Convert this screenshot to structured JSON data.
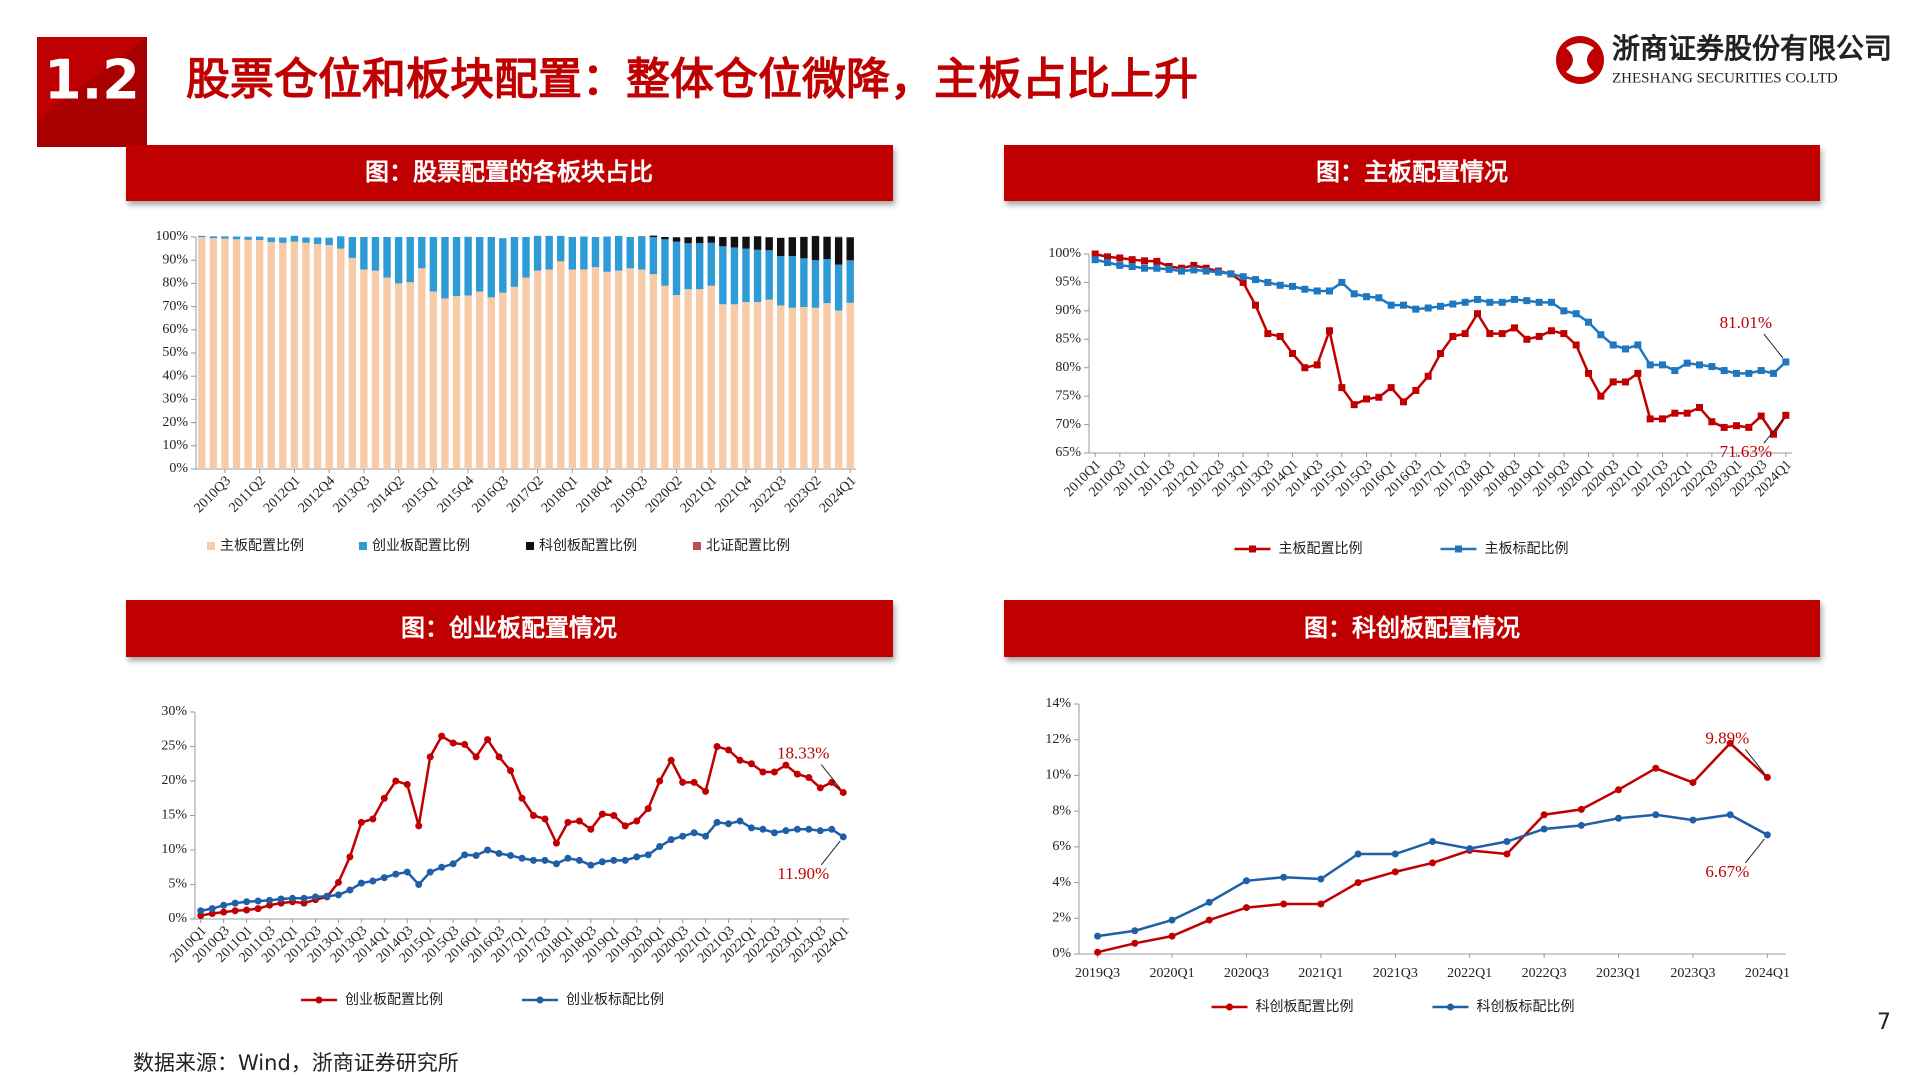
{
  "section_number": "1.2",
  "title": "股票仓位和板块配置：整体仓位微降，主板占比上升",
  "company": "浙商证券股份有限公司",
  "company_en": "ZHESHANG SECURITIES CO.LTD",
  "source": "数据来源：Wind，浙商证券研究所",
  "page_number": "7",
  "chart_data": [
    {
      "type": "bar",
      "stacked": true,
      "title": "图：股票配置的各板块占比",
      "legend": "bottom",
      "marker": "square",
      "categories": [
        null,
        null,
        "2010Q3",
        null,
        null,
        "2011Q2",
        null,
        null,
        "2012Q1",
        null,
        null,
        "2012Q4",
        null,
        null,
        "2013Q3",
        null,
        null,
        "2014Q2",
        null,
        null,
        "2015Q1",
        null,
        null,
        "2015Q4",
        null,
        null,
        "2016Q3",
        null,
        null,
        "2017Q2",
        null,
        null,
        "2018Q1",
        null,
        null,
        "2018Q4",
        null,
        null,
        "2019Q3",
        null,
        null,
        "2020Q2",
        null,
        null,
        "2021Q1",
        null,
        null,
        "2021Q4",
        null,
        null,
        "2022Q3",
        null,
        null,
        "2023Q2",
        null,
        null,
        "2024Q1"
      ],
      "ylim": [
        0,
        100
      ],
      "yticks": [
        {
          "value": 0,
          "label": "0%"
        },
        {
          "value": 10,
          "label": "10%"
        },
        {
          "value": 20,
          "label": "20%"
        },
        {
          "value": 30,
          "label": "30%"
        },
        {
          "value": 40,
          "label": "40%"
        },
        {
          "value": 50,
          "label": "50%"
        },
        {
          "value": 60,
          "label": "60%"
        },
        {
          "value": 70,
          "label": "70%"
        },
        {
          "value": 80,
          "label": "80%"
        },
        {
          "value": 90,
          "label": "90%"
        },
        {
          "value": 100,
          "label": "100%"
        }
      ],
      "series": [
        {
          "name": "主板配置比例",
          "color": "#f8cba8",
          "values": [
            100,
            99.5,
            99.3,
            99,
            98.8,
            98.7,
            97.8,
            97.5,
            98,
            97.5,
            97,
            96.5,
            95,
            91,
            86,
            85.5,
            82.5,
            80,
            80.5,
            86.5,
            76.5,
            73.5,
            74.5,
            74.8,
            76.5,
            74,
            76,
            78.5,
            82.5,
            85.5,
            86,
            89.5,
            86,
            86,
            87,
            85,
            85.5,
            86.5,
            86,
            84,
            79,
            75,
            77.5,
            77.5,
            79,
            71,
            71,
            72,
            72,
            73,
            70.5,
            69.5,
            69.8,
            69.5,
            71.5,
            68.3,
            71.63
          ]
        },
        {
          "name": "创业板配置比例",
          "color": "#2e9bd6",
          "values": [
            0.5,
            0.8,
            1,
            1.2,
            1.3,
            1.5,
            2,
            2.3,
            2.5,
            2.3,
            2.8,
            3.2,
            5.3,
            9,
            14,
            14.5,
            17.5,
            20,
            19.5,
            13.5,
            23.5,
            26.5,
            25.5,
            25.3,
            23.5,
            26,
            23.5,
            21.5,
            17.5,
            15,
            14.5,
            11,
            14,
            14.2,
            13,
            15.2,
            15,
            13.5,
            14.2,
            16,
            20,
            23,
            19.8,
            19.8,
            18.5,
            25,
            24.5,
            23,
            22.5,
            21.3,
            21.3,
            22.3,
            21,
            20.5,
            19,
            19.8,
            18.33
          ]
        },
        {
          "name": "科创板配置比例",
          "color": "#111111",
          "values": [
            null,
            null,
            null,
            null,
            null,
            null,
            null,
            null,
            null,
            null,
            null,
            null,
            null,
            null,
            null,
            null,
            null,
            null,
            null,
            null,
            null,
            null,
            null,
            null,
            null,
            null,
            null,
            null,
            null,
            null,
            null,
            null,
            null,
            null,
            null,
            null,
            null,
            null,
            0.1,
            0.6,
            1,
            1.9,
            2.6,
            2.8,
            2.8,
            4,
            4.6,
            5.1,
            5.8,
            5.6,
            7.8,
            8.1,
            9.2,
            10.4,
            9.6,
            11.8,
            9.89
          ]
        },
        {
          "name": "北证配置比例",
          "color": "#c0504d",
          "values": [
            null,
            null,
            null,
            null,
            null,
            null,
            null,
            null,
            null,
            null,
            null,
            null,
            null,
            null,
            null,
            null,
            null,
            null,
            null,
            null,
            null,
            null,
            null,
            null,
            null,
            null,
            null,
            null,
            null,
            null,
            null,
            null,
            null,
            null,
            null,
            null,
            null,
            null,
            null,
            null,
            null,
            null,
            null,
            null,
            null,
            null,
            null,
            0.1,
            0.1,
            0.1,
            0.1,
            0.1,
            0.1,
            0.1,
            0.1,
            0.2,
            0.15
          ]
        }
      ]
    },
    {
      "type": "line",
      "title": "图：主板配置情况",
      "legend": "bottom",
      "marker": "square",
      "categories": [
        "2010Q1",
        null,
        "2010Q3",
        null,
        "2011Q1",
        null,
        "2011Q3",
        null,
        "2012Q1",
        null,
        "2012Q3",
        null,
        "2013Q1",
        null,
        "2013Q3",
        null,
        "2014Q1",
        null,
        "2014Q3",
        null,
        "2015Q1",
        null,
        "2015Q3",
        null,
        "2016Q1",
        null,
        "2016Q3",
        null,
        "2017Q1",
        null,
        "2017Q3",
        null,
        "2018Q1",
        null,
        "2018Q3",
        null,
        "2019Q1",
        null,
        "2019Q3",
        null,
        "2020Q1",
        null,
        "2020Q3",
        null,
        "2021Q1",
        null,
        "2021Q3",
        null,
        "2022Q1",
        null,
        "2022Q3",
        null,
        "2023Q1",
        null,
        "2023Q3",
        null,
        "2024Q1"
      ],
      "ylim": [
        65,
        100
      ],
      "yticks": [
        {
          "value": 65,
          "label": "65%"
        },
        {
          "value": 70,
          "label": "70%"
        },
        {
          "value": 75,
          "label": "75%"
        },
        {
          "value": 80,
          "label": "80%"
        },
        {
          "value": 85,
          "label": "85%"
        },
        {
          "value": 90,
          "label": "90%"
        },
        {
          "value": 95,
          "label": "95%"
        },
        {
          "value": 100,
          "label": "100%"
        }
      ],
      "series": [
        {
          "name": "主板配置比例",
          "color": "#c00000",
          "values": [
            100,
            99.5,
            99.3,
            99,
            98.8,
            98.7,
            97.8,
            97.5,
            98,
            97.5,
            97,
            96.5,
            95,
            91,
            86,
            85.5,
            82.5,
            80,
            80.5,
            86.5,
            76.5,
            73.5,
            74.5,
            74.8,
            76.5,
            74,
            76,
            78.5,
            82.5,
            85.5,
            86,
            89.5,
            86,
            86,
            87,
            85,
            85.5,
            86.5,
            86,
            84,
            79,
            75,
            77.5,
            77.5,
            79,
            71,
            71,
            72,
            72,
            73,
            70.5,
            69.5,
            69.8,
            69.5,
            71.5,
            68.3,
            71.63
          ]
        },
        {
          "name": "主板标配比例",
          "color": "#1f77c0",
          "values": [
            99,
            98.5,
            98,
            97.8,
            97.5,
            97.5,
            97.3,
            97,
            97.2,
            97,
            96.8,
            96.5,
            96,
            95.5,
            95,
            94.5,
            94.3,
            93.8,
            93.5,
            93.5,
            95,
            93,
            92.5,
            92.3,
            91,
            91,
            90.3,
            90.5,
            90.8,
            91.2,
            91.5,
            92,
            91.5,
            91.5,
            92,
            91.8,
            91.5,
            91.5,
            90,
            89.5,
            88,
            85.8,
            84,
            83.3,
            84,
            80.5,
            80.5,
            79.5,
            80.8,
            80.5,
            80.2,
            79.5,
            79,
            79,
            79.5,
            79,
            81.01
          ]
        }
      ],
      "annotations": [
        {
          "value": 81.01,
          "label": "81.01%"
        },
        {
          "value": 71.63,
          "label": "71.63%"
        }
      ]
    },
    {
      "type": "line",
      "title": "图：创业板配置情况",
      "legend": "bottom",
      "marker": "circle",
      "categories": [
        "2010Q1",
        null,
        "2010Q3",
        null,
        "2011Q1",
        null,
        "2011Q3",
        null,
        "2012Q1",
        null,
        "2012Q3",
        null,
        "2013Q1",
        null,
        "2013Q3",
        null,
        "2014Q1",
        null,
        "2014Q3",
        null,
        "2015Q1",
        null,
        "2015Q3",
        null,
        "2016Q1",
        null,
        "2016Q3",
        null,
        "2017Q1",
        null,
        "2017Q3",
        null,
        "2018Q1",
        null,
        "2018Q3",
        null,
        "2019Q1",
        null,
        "2019Q3",
        null,
        "2020Q1",
        null,
        "2020Q3",
        null,
        "2021Q1",
        null,
        "2021Q3",
        null,
        "2022Q1",
        null,
        "2022Q3",
        null,
        "2023Q1",
        null,
        "2023Q3",
        null,
        "2024Q1"
      ],
      "ylim": [
        0,
        30
      ],
      "yticks": [
        {
          "value": 0,
          "label": "0%"
        },
        {
          "value": 5,
          "label": "5%"
        },
        {
          "value": 10,
          "label": "10%"
        },
        {
          "value": 15,
          "label": "15%"
        },
        {
          "value": 20,
          "label": "20%"
        },
        {
          "value": 25,
          "label": "25%"
        },
        {
          "value": 30,
          "label": "30%"
        }
      ],
      "series": [
        {
          "name": "创业板配置比例",
          "color": "#c00000",
          "values": [
            0.5,
            0.8,
            1,
            1.2,
            1.3,
            1.5,
            2,
            2.3,
            2.5,
            2.3,
            2.8,
            3.2,
            5.3,
            9,
            14,
            14.5,
            17.5,
            20,
            19.5,
            13.5,
            23.5,
            26.5,
            25.5,
            25.3,
            23.5,
            26,
            23.5,
            21.5,
            17.5,
            15,
            14.5,
            11,
            14,
            14.2,
            13,
            15.2,
            15,
            13.5,
            14.2,
            16,
            20,
            23,
            19.8,
            19.8,
            18.5,
            25,
            24.5,
            23,
            22.5,
            21.3,
            21.3,
            22.3,
            21,
            20.5,
            19,
            19.8,
            18.33
          ]
        },
        {
          "name": "创业板标配比例",
          "color": "#1f5fa8",
          "values": [
            1.2,
            1.5,
            2,
            2.3,
            2.5,
            2.6,
            2.7,
            2.9,
            3,
            3,
            3.2,
            3.3,
            3.5,
            4.2,
            5.2,
            5.5,
            6,
            6.5,
            6.8,
            5,
            6.8,
            7.5,
            8,
            9.3,
            9.2,
            10,
            9.5,
            9.2,
            8.8,
            8.5,
            8.5,
            8,
            8.8,
            8.5,
            7.8,
            8.3,
            8.5,
            8.5,
            9,
            9.3,
            10.5,
            11.5,
            12,
            12.5,
            12,
            14,
            13.8,
            14.2,
            13.2,
            13,
            12.5,
            12.8,
            13,
            13,
            12.8,
            13,
            11.9
          ]
        }
      ],
      "annotations": [
        {
          "value": 18.33,
          "label": "18.33%"
        },
        {
          "value": 11.9,
          "label": "11.90%"
        }
      ]
    },
    {
      "type": "line",
      "title": "图：科创板配置情况",
      "legend": "bottom",
      "marker": "circle",
      "categories": [
        "2019Q3",
        null,
        "2020Q1",
        null,
        "2020Q3",
        null,
        "2021Q1",
        null,
        "2021Q3",
        null,
        "2022Q1",
        null,
        "2022Q3",
        null,
        "2023Q1",
        null,
        "2023Q3",
        null,
        "2024Q1"
      ],
      "ylim": [
        0,
        14
      ],
      "yticks": [
        {
          "value": 0,
          "label": "0%"
        },
        {
          "value": 2,
          "label": "2%"
        },
        {
          "value": 4,
          "label": "4%"
        },
        {
          "value": 6,
          "label": "6%"
        },
        {
          "value": 8,
          "label": "8%"
        },
        {
          "value": 10,
          "label": "10%"
        },
        {
          "value": 12,
          "label": "12%"
        },
        {
          "value": 14,
          "label": "14%"
        }
      ],
      "series": [
        {
          "name": "科创板配置比例",
          "color": "#c00000",
          "values": [
            0.1,
            0.6,
            1,
            1.9,
            2.6,
            2.8,
            2.8,
            4,
            4.6,
            5.1,
            5.8,
            5.6,
            7.8,
            8.1,
            9.2,
            10.4,
            9.6,
            11.8,
            9.89
          ]
        },
        {
          "name": "科创板标配比例",
          "color": "#1f5fa8",
          "values": [
            1,
            1.3,
            1.9,
            2.9,
            4.1,
            4.3,
            4.2,
            5.6,
            5.6,
            6.3,
            5.9,
            6.3,
            7,
            7.2,
            7.6,
            7.8,
            7.5,
            7.8,
            6.67
          ]
        }
      ],
      "annotations": [
        {
          "value": 9.89,
          "label": "9.89%"
        },
        {
          "value": 6.67,
          "label": "6.67%"
        }
      ]
    }
  ]
}
